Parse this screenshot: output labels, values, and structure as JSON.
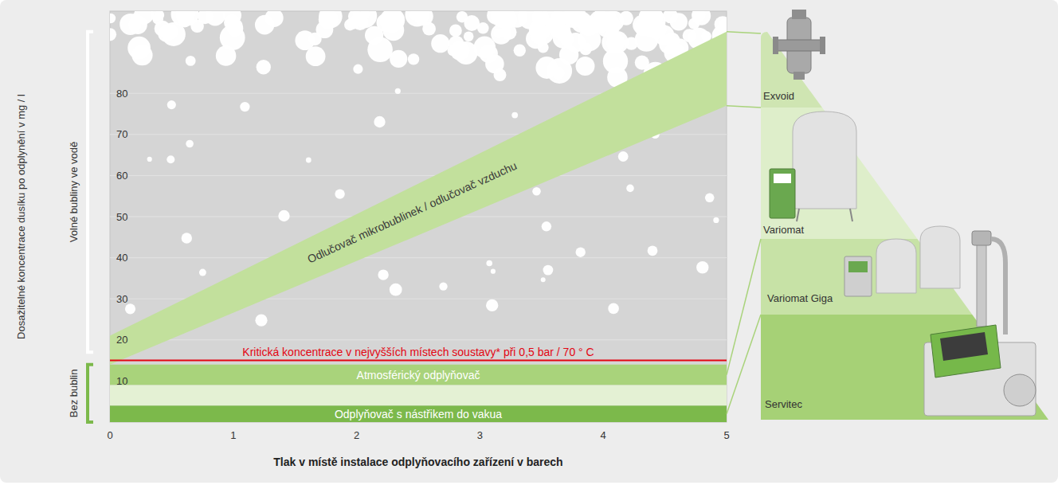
{
  "chart_data": {
    "type": "area",
    "x_label": "Tlak v místě instalace odplyňovacího zařízení v barech",
    "y_label": "Dosažitelné koncentrace dusíku po odplynění v mg / l",
    "x": [
      0,
      5
    ],
    "series": [
      {
        "name": "Odlučovač mikrobublinek / odlučovač vzduchu",
        "color": "#c2e09c",
        "values": [
          21,
          95
        ],
        "low": [
          14,
          77
        ]
      }
    ],
    "bands": [
      {
        "name": "Atmosférický odplyňovač",
        "low": 9,
        "high": 14,
        "color": "#a9d37b"
      },
      {
        "low": 4,
        "high": 9,
        "color": "#e4f1d4"
      },
      {
        "name": "Odplyňovač s nástřikem do vakua",
        "low": 0,
        "high": 4,
        "color": "#7cb94b"
      }
    ],
    "reference_line": {
      "label": "Kritická koncentrace v nejvyšších místech soustavy* při 0,5 bar / 70 ° C",
      "value": 15,
      "color": "#e30613"
    },
    "regions": [
      {
        "label": "Volné bubliny ve vodě",
        "from": 17,
        "to": 95,
        "color": "#ffffff"
      },
      {
        "label": "Bez bublin",
        "from": 0,
        "to": 14,
        "color": "#7cb94b"
      }
    ],
    "devices": [
      "Exvoid",
      "Variomat",
      "Variomat Giga",
      "Servitec"
    ],
    "xlim": [
      0,
      5
    ],
    "ylim": [
      0,
      100
    ],
    "xticks": [
      0,
      1,
      2,
      3,
      4,
      5
    ],
    "yticks": [
      10,
      20,
      30,
      40,
      50,
      60,
      70,
      80
    ],
    "grid": true
  }
}
